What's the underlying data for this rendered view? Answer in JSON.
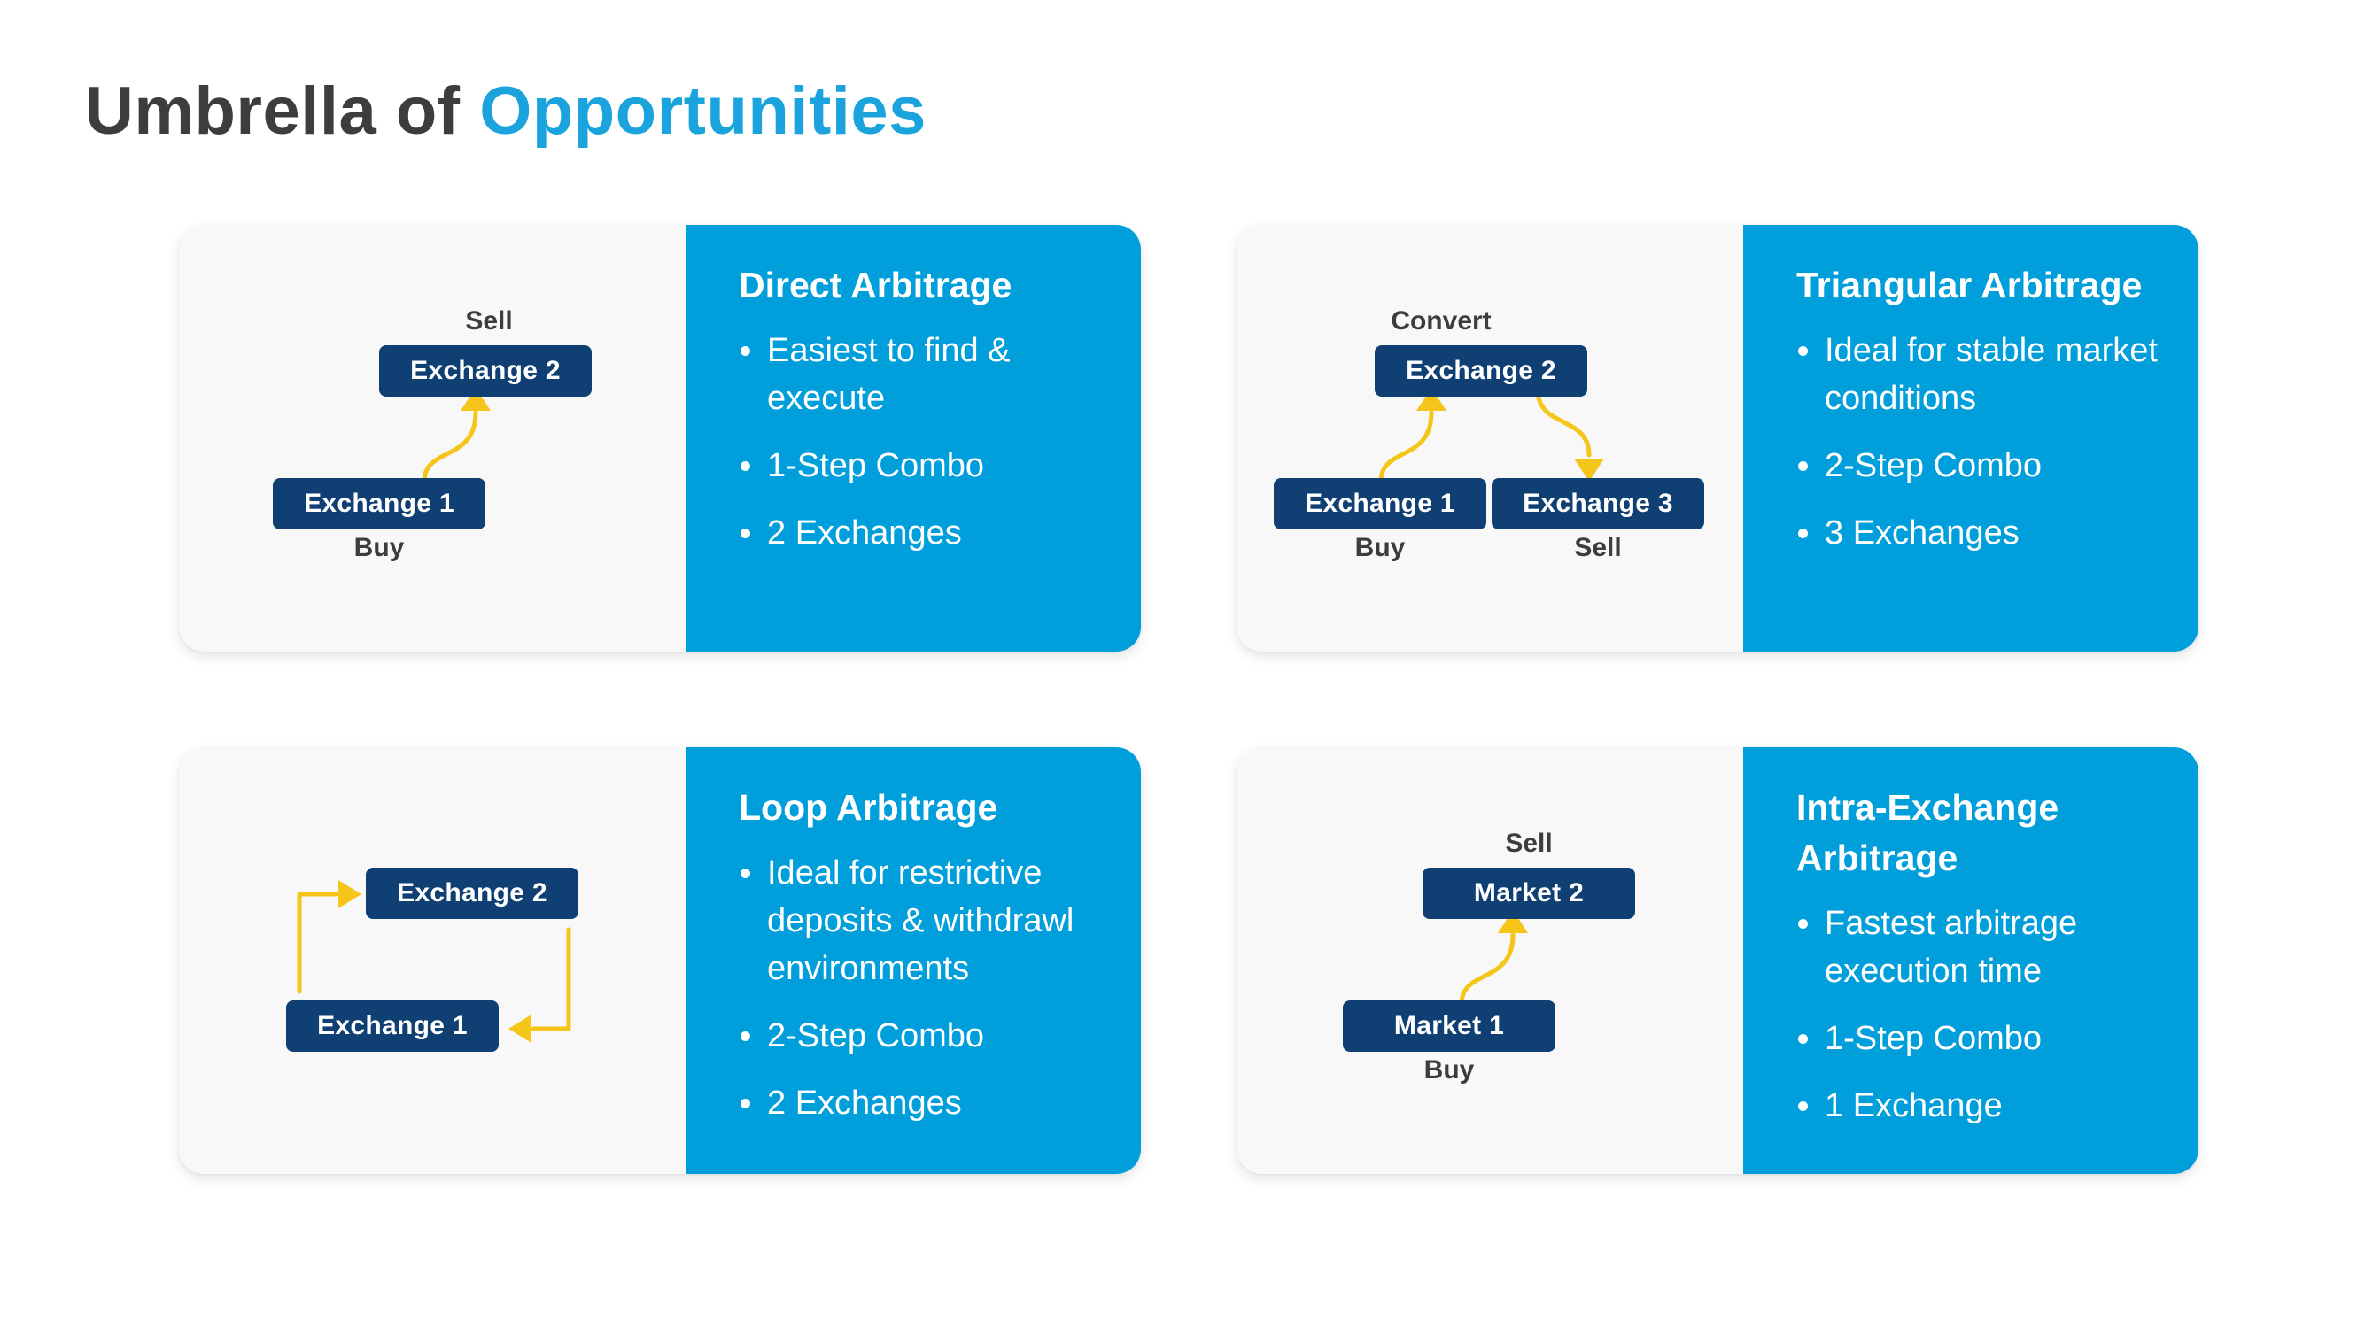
{
  "title": {
    "main": "Umbrella of",
    "accent": "Opportunities"
  },
  "colors": {
    "accent": "#1aa3dd",
    "panel": "#009fdb",
    "node": "#0f3f73",
    "arrow": "#f5c519",
    "title": "#3d3d3d"
  },
  "cards": [
    {
      "title": "Direct Arbitrage",
      "bullets": [
        "Easiest to find & execute",
        "1-Step Combo",
        "2 Exchanges"
      ],
      "nodes": [
        "Exchange 1",
        "Exchange 2"
      ],
      "labels": [
        "Buy",
        "Sell"
      ]
    },
    {
      "title": "Triangular Arbitrage",
      "bullets": [
        "Ideal for stable market conditions",
        "2-Step Combo",
        "3 Exchanges"
      ],
      "nodes": [
        "Exchange 1",
        "Exchange 2",
        "Exchange 3"
      ],
      "labels": [
        "Buy",
        "Convert",
        "Sell"
      ]
    },
    {
      "title": "Loop Arbitrage",
      "bullets": [
        "Ideal for restrictive deposits & withdrawl environments",
        "2-Step Combo",
        "2 Exchanges"
      ],
      "nodes": [
        "Exchange 1",
        "Exchange 2"
      ]
    },
    {
      "title": "Intra-Exchange Arbitrage",
      "bullets": [
        "Fastest arbitrage execution time",
        "1-Step Combo",
        "1 Exchange"
      ],
      "nodes": [
        "Market 1",
        "Market 2"
      ],
      "labels": [
        "Buy",
        "Sell"
      ]
    }
  ]
}
